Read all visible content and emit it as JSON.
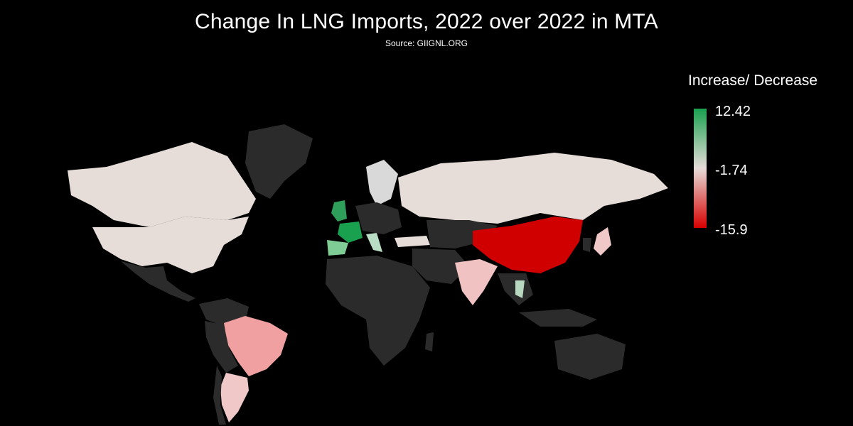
{
  "title": "Change In LNG Imports, 2022 over 2022 in MTA",
  "subtitle": "Source: GIIGNL.ORG",
  "legend": {
    "title": "Increase/ Decrease",
    "max_label": "12.42",
    "mid_label": "-1.74",
    "min_label": "-15.9",
    "colors": {
      "max": "#1aa150",
      "mid": "#e6dcd8",
      "min": "#d80000",
      "no_data": "#2b2b2b",
      "background": "#000000"
    }
  },
  "map": {
    "highlighted_regions": [
      "United States",
      "Canada",
      "Russia",
      "France",
      "United Kingdom",
      "Italy",
      "China",
      "India",
      "Brazil",
      "Japan",
      "Argentina",
      "Chile",
      "Spain",
      "Thailand",
      "Turkey"
    ]
  }
}
